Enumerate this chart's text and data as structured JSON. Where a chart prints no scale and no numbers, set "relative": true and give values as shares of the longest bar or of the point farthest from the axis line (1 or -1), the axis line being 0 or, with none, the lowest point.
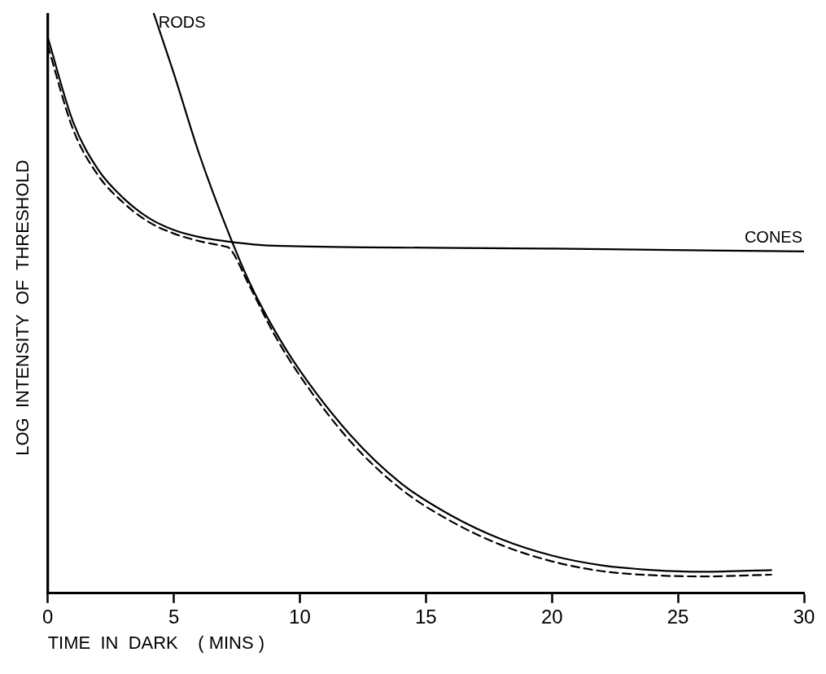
{
  "chart_data": {
    "type": "line",
    "relative": true,
    "xlabel": "TIME  IN  DARK    ( MINS )",
    "ylabel": "LOG  INTENSITY  OF  THRESHOLD",
    "xlim": [
      0,
      30
    ],
    "xticks": [
      0,
      5,
      10,
      15,
      20,
      25,
      30
    ],
    "grid": false,
    "legend": false,
    "marker": "none",
    "series": [
      {
        "name": "RODS",
        "color": "#000000",
        "line_style": "solid",
        "x": [
          4.2,
          5,
          6,
          7,
          8,
          9,
          10,
          12,
          14,
          16,
          18,
          20,
          22,
          24,
          26,
          28.7
        ],
        "values": [
          1.0,
          0.896,
          0.758,
          0.64,
          0.536,
          0.453,
          0.384,
          0.273,
          0.19,
          0.134,
          0.093,
          0.065,
          0.048,
          0.04,
          0.037,
          0.04
        ]
      },
      {
        "name": "CONES",
        "color": "#000000",
        "line_style": "solid",
        "x": [
          0,
          1,
          2,
          3,
          4,
          5,
          6,
          7,
          8.5,
          10,
          20,
          30
        ],
        "values": [
          0.958,
          0.813,
          0.73,
          0.681,
          0.647,
          0.626,
          0.614,
          0.607,
          0.6,
          0.598,
          0.594,
          0.589
        ]
      },
      {
        "color": "#000000",
        "line_style": "dashed",
        "x": [
          0,
          1,
          2,
          3,
          4,
          5,
          6,
          7,
          7.2,
          8,
          9,
          10,
          12,
          14,
          16,
          18,
          20,
          22,
          24,
          26,
          28.7
        ],
        "values": [
          0.944,
          0.8,
          0.72,
          0.673,
          0.64,
          0.62,
          0.607,
          0.598,
          0.595,
          0.53,
          0.445,
          0.375,
          0.262,
          0.18,
          0.124,
          0.083,
          0.055,
          0.038,
          0.031,
          0.029,
          0.032
        ]
      }
    ]
  }
}
